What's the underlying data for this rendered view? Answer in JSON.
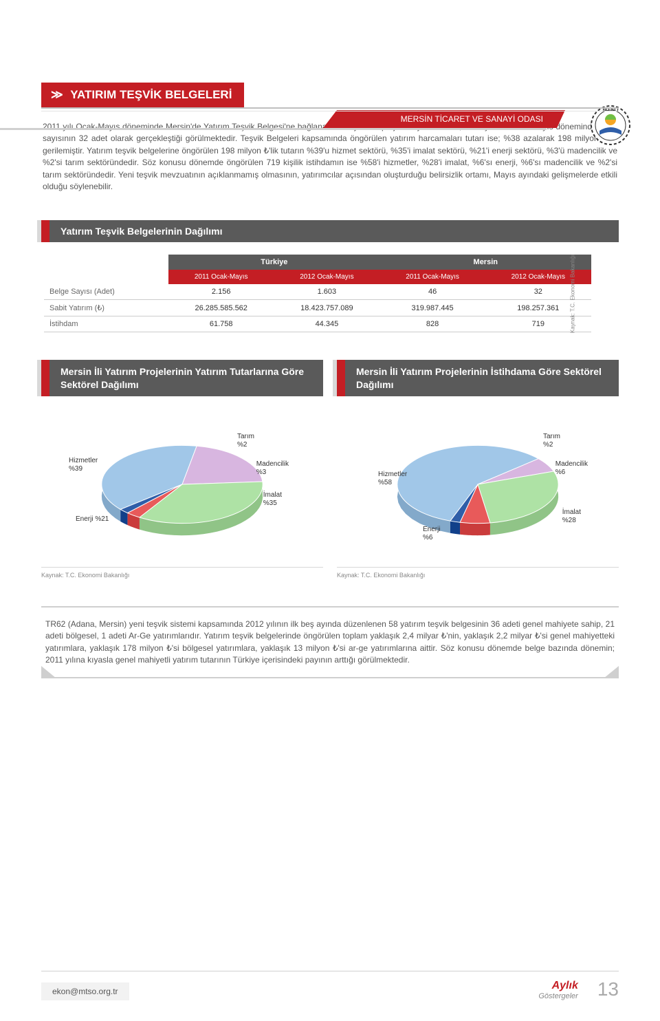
{
  "header": {
    "org_name": "MERSİN TİCARET VE SANAYİ ODASI",
    "logo_text": "MTSO"
  },
  "section": {
    "title": "YATIRIM TEŞVİK BELGELERİ",
    "body": "2011 yılı Ocak-Mayıs döneminde Mersin'de Yatırım Teşvik Belgesi'ne bağlanan sabit yatırım projesi sayısı 46 iken; 2012 yılının Ocak-Mayıs döneminde proje sayısının 32 adet olarak gerçekleştiği görülmektedir. Teşvik Belgeleri kapsamında öngörülen yatırım harcamaları tutarı ise; %38 azalarak 198 milyon ₺'ye gerilemiştir. Yatırım teşvik belgelerine öngörülen 198 milyon ₺'lik tutarın %39'u hizmet sektörü, %35'i imalat sektörü, %21'i enerji sektörü, %3'ü madencilik ve %2'si tarım sektöründedir. Söz konusu dönemde öngörülen 719 kişilik istihdamın ise %58'i hizmetler, %28'i imalat, %6'sı enerji, %6'sı madencilik ve %2'si tarım sektöründedir. Yeni teşvik mevzuatının açıklanmamış olmasının, yatırımcılar açısından oluşturduğu belirsizlik ortamı, Mayıs ayındaki gelişmelerde etkili olduğu söylenebilir."
  },
  "table_section": {
    "title": "Yatırım Teşvik Belgelerinin Dağılımı",
    "group_headers": [
      "",
      "Türkiye",
      "Mersin"
    ],
    "period_headers": [
      "",
      "2011 Ocak-Mayıs",
      "2012 Ocak-Mayıs",
      "2011 Ocak-Mayıs",
      "2012 Ocak-Mayıs"
    ],
    "rows": [
      {
        "label": "Belge Sayısı (Adet)",
        "values": [
          "2.156",
          "1.603",
          "46",
          "32"
        ]
      },
      {
        "label": "Sabit Yatırım (₺)",
        "values": [
          "26.285.585.562",
          "18.423.757.089",
          "319.987.445",
          "198.257.361"
        ]
      },
      {
        "label": "İstihdam",
        "values": [
          "61.758",
          "44.345",
          "828",
          "719"
        ]
      }
    ],
    "source": "Kaynak: T.C. Ekonomi Bakanlığı"
  },
  "pie1": {
    "title": "Mersin İli Yatırım Projelerinin Yatırım Tutarlarına Göre Sektörel Dağılımı",
    "type": "pie",
    "slices": [
      {
        "label": "Hizmetler",
        "pct": 39,
        "color": "#a1c7e8",
        "text": "Hizmetler\n%39"
      },
      {
        "label": "Enerji",
        "pct": 21,
        "color": "#d8b6e0",
        "text": "Enerji %21"
      },
      {
        "label": "İmalat",
        "pct": 35,
        "color": "#aee2a5",
        "text": "İmalat\n%35"
      },
      {
        "label": "Madencilik",
        "pct": 3,
        "color": "#e85a5a",
        "text": "Madencilik\n%3"
      },
      {
        "label": "Tarım",
        "pct": 2,
        "color": "#2f5ea8",
        "text": "Tarım\n%2"
      }
    ],
    "source": "Kaynak: T.C. Ekonomi Bakanlığı"
  },
  "pie2": {
    "title": "Mersin İli Yatırım Projelerinin İstihdama Göre Sektörel Dağılımı",
    "type": "pie",
    "slices": [
      {
        "label": "Hizmetler",
        "pct": 58,
        "color": "#a1c7e8",
        "text": "Hizmetler\n%58"
      },
      {
        "label": "Enerji",
        "pct": 6,
        "color": "#d8b6e0",
        "text": "Enerji\n%6"
      },
      {
        "label": "İmalat",
        "pct": 28,
        "color": "#aee2a5",
        "text": "İmalat\n%28"
      },
      {
        "label": "Madencilik",
        "pct": 6,
        "color": "#e85a5a",
        "text": "Madencilik\n%6"
      },
      {
        "label": "Tarım",
        "pct": 2,
        "color": "#2f5ea8",
        "text": "Tarım\n%2"
      }
    ],
    "source": "Kaynak: T.C. Ekonomi Bakanlığı"
  },
  "bottom_text": "TR62 (Adana, Mersin) yeni teşvik sistemi kapsamında 2012 yılının ilk beş ayında düzenlenen 58 yatırım teşvik belgesinin 36 adeti genel mahiyete sahip, 21 adeti bölgesel, 1 adeti Ar-Ge yatırımlarıdır. Yatırım teşvik belgelerinde öngörülen toplam yaklaşık 2,4 milyar ₺'nin, yaklaşık 2,2 milyar ₺'si genel mahiyetteki yatırımlara, yaklaşık 178 milyon ₺'si bölgesel yatırımlara, yaklaşık 13 milyon ₺'si ar-ge yatırımlarına aittir. Söz konusu dönemde belge bazında dönemin; 2011 yılına kıyasla genel mahiyetli yatırım tutarının Türkiye içerisindeki payının arttığı görülmektedir.",
  "footer": {
    "email": "ekon@mtso.org.tr",
    "brand": "Aylık",
    "sub": "Göstergeler",
    "page": "13"
  },
  "style": {
    "accent": "#c41e24",
    "dark": "#5a5a5a",
    "gray": "#cfcfcf"
  }
}
